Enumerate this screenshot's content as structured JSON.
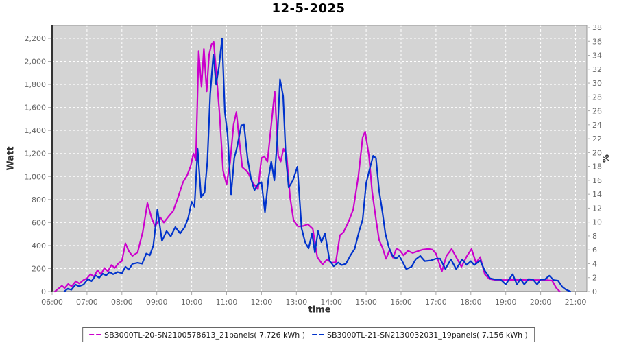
{
  "title": "12-5-2025",
  "axes": {
    "left": {
      "title": "Watt",
      "tick_labels": [
        "0",
        "200",
        "400",
        "600",
        "800",
        "1,000",
        "1,200",
        "1,400",
        "1,600",
        "1,800",
        "2,000",
        "2,200"
      ]
    },
    "right": {
      "title": "%",
      "tick_labels": [
        "0",
        "2",
        "4",
        "6",
        "8",
        "10",
        "12",
        "14",
        "16",
        "18",
        "20",
        "22",
        "24",
        "26",
        "28",
        "30",
        "32",
        "34",
        "36",
        "38"
      ]
    },
    "bottom": {
      "title": "time",
      "tick_labels": [
        "06:00",
        "07:00",
        "08:00",
        "09:00",
        "10:00",
        "11:00",
        "12:00",
        "13:00",
        "14:00",
        "15:00",
        "16:00",
        "17:00",
        "18:00",
        "19:00",
        "20:00",
        "21:00"
      ]
    }
  },
  "colors": {
    "plot_bg": "#d4d4d4",
    "grid": "#ffffff",
    "series1": "#cc00cc",
    "series2": "#0033cc",
    "tick_text": "#666666",
    "axis_line": "#333333",
    "panel_border": "#999999"
  },
  "legend": {
    "items": [
      {
        "label": "SB3000TL-20-SN2100578613_21panels( 7.726 kWh )",
        "color": "#cc00cc"
      },
      {
        "label": "SB3000TL-21-SN2130032031_19panels( 7.156 kWh )",
        "color": "#0033cc"
      }
    ]
  },
  "chart_data": {
    "type": "line",
    "title": "12-5-2025",
    "xlabel": "time",
    "ylabel": "Watt",
    "y2label": "%",
    "x_range_hours": [
      6,
      21.33
    ],
    "ylim": [
      0,
      2313
    ],
    "y2lim": [
      0,
      38.3
    ],
    "x_ticks_hours": [
      6,
      7,
      8,
      9,
      10,
      11,
      12,
      13,
      14,
      15,
      16,
      17,
      18,
      19,
      20,
      21
    ],
    "y_tick_step": 200,
    "y2_tick_step": 2,
    "grid": "on",
    "legend_position": "bottom",
    "series": [
      {
        "name": "SB3000TL-20-SN2100578613_21panels",
        "energy_kwh": 7.726,
        "color": "#cc00cc",
        "points": [
          [
            6.08,
            0
          ],
          [
            6.18,
            25
          ],
          [
            6.28,
            50
          ],
          [
            6.36,
            30
          ],
          [
            6.46,
            65
          ],
          [
            6.56,
            45
          ],
          [
            6.68,
            90
          ],
          [
            6.78,
            70
          ],
          [
            6.9,
            100
          ],
          [
            7.0,
            115
          ],
          [
            7.1,
            150
          ],
          [
            7.2,
            130
          ],
          [
            7.3,
            185
          ],
          [
            7.4,
            150
          ],
          [
            7.5,
            205
          ],
          [
            7.6,
            175
          ],
          [
            7.7,
            230
          ],
          [
            7.8,
            205
          ],
          [
            7.9,
            245
          ],
          [
            8.0,
            265
          ],
          [
            8.1,
            420
          ],
          [
            8.2,
            350
          ],
          [
            8.3,
            310
          ],
          [
            8.45,
            340
          ],
          [
            8.6,
            520
          ],
          [
            8.73,
            770
          ],
          [
            8.85,
            640
          ],
          [
            8.95,
            565
          ],
          [
            9.1,
            645
          ],
          [
            9.2,
            600
          ],
          [
            9.33,
            650
          ],
          [
            9.47,
            700
          ],
          [
            9.6,
            810
          ],
          [
            9.75,
            950
          ],
          [
            9.87,
            1010
          ],
          [
            9.97,
            1090
          ],
          [
            10.05,
            1200
          ],
          [
            10.12,
            1140
          ],
          [
            10.2,
            2090
          ],
          [
            10.28,
            1780
          ],
          [
            10.35,
            2110
          ],
          [
            10.43,
            1740
          ],
          [
            10.5,
            2060
          ],
          [
            10.57,
            2150
          ],
          [
            10.63,
            2170
          ],
          [
            10.72,
            1850
          ],
          [
            10.8,
            1540
          ],
          [
            10.9,
            1050
          ],
          [
            11.0,
            930
          ],
          [
            11.1,
            1120
          ],
          [
            11.2,
            1450
          ],
          [
            11.28,
            1560
          ],
          [
            11.37,
            1300
          ],
          [
            11.45,
            1080
          ],
          [
            11.55,
            1055
          ],
          [
            11.63,
            1025
          ],
          [
            11.75,
            945
          ],
          [
            11.9,
            890
          ],
          [
            12.0,
            1160
          ],
          [
            12.08,
            1175
          ],
          [
            12.17,
            1130
          ],
          [
            12.28,
            1450
          ],
          [
            12.38,
            1740
          ],
          [
            12.48,
            1180
          ],
          [
            12.55,
            1130
          ],
          [
            12.63,
            1240
          ],
          [
            12.72,
            1190
          ],
          [
            12.82,
            820
          ],
          [
            12.92,
            620
          ],
          [
            13.05,
            565
          ],
          [
            13.2,
            570
          ],
          [
            13.33,
            585
          ],
          [
            13.47,
            545
          ],
          [
            13.6,
            300
          ],
          [
            13.75,
            235
          ],
          [
            13.88,
            280
          ],
          [
            14.0,
            250
          ],
          [
            14.13,
            255
          ],
          [
            14.25,
            490
          ],
          [
            14.35,
            515
          ],
          [
            14.5,
            610
          ],
          [
            14.63,
            715
          ],
          [
            14.78,
            1010
          ],
          [
            14.9,
            1340
          ],
          [
            14.97,
            1390
          ],
          [
            15.08,
            1180
          ],
          [
            15.17,
            870
          ],
          [
            15.28,
            630
          ],
          [
            15.37,
            450
          ],
          [
            15.47,
            380
          ],
          [
            15.57,
            285
          ],
          [
            15.67,
            360
          ],
          [
            15.77,
            295
          ],
          [
            15.87,
            375
          ],
          [
            15.97,
            355
          ],
          [
            16.07,
            315
          ],
          [
            16.2,
            355
          ],
          [
            16.33,
            335
          ],
          [
            16.47,
            350
          ],
          [
            16.62,
            365
          ],
          [
            16.78,
            370
          ],
          [
            16.9,
            365
          ],
          [
            17.0,
            330
          ],
          [
            17.17,
            175
          ],
          [
            17.3,
            310
          ],
          [
            17.45,
            370
          ],
          [
            17.58,
            300
          ],
          [
            17.73,
            215
          ],
          [
            17.88,
            305
          ],
          [
            18.02,
            370
          ],
          [
            18.15,
            250
          ],
          [
            18.27,
            300
          ],
          [
            18.4,
            150
          ],
          [
            18.53,
            110
          ],
          [
            18.7,
            100
          ],
          [
            19.0,
            100
          ],
          [
            19.3,
            102
          ],
          [
            19.6,
            100
          ],
          [
            19.9,
            100
          ],
          [
            20.15,
            100
          ],
          [
            20.33,
            95
          ],
          [
            20.45,
            30
          ],
          [
            20.55,
            0
          ]
        ]
      },
      {
        "name": "SB3000TL-21-SN2130032031_19panels",
        "energy_kwh": 7.156,
        "color": "#0033cc",
        "points": [
          [
            6.35,
            0
          ],
          [
            6.45,
            25
          ],
          [
            6.55,
            15
          ],
          [
            6.67,
            60
          ],
          [
            6.77,
            45
          ],
          [
            6.9,
            60
          ],
          [
            7.03,
            110
          ],
          [
            7.13,
            90
          ],
          [
            7.25,
            140
          ],
          [
            7.35,
            120
          ],
          [
            7.45,
            155
          ],
          [
            7.55,
            140
          ],
          [
            7.65,
            170
          ],
          [
            7.75,
            150
          ],
          [
            7.88,
            170
          ],
          [
            8.0,
            158
          ],
          [
            8.1,
            215
          ],
          [
            8.2,
            190
          ],
          [
            8.3,
            240
          ],
          [
            8.45,
            250
          ],
          [
            8.58,
            242
          ],
          [
            8.7,
            330
          ],
          [
            8.8,
            315
          ],
          [
            8.9,
            400
          ],
          [
            9.02,
            715
          ],
          [
            9.15,
            440
          ],
          [
            9.28,
            525
          ],
          [
            9.4,
            480
          ],
          [
            9.53,
            560
          ],
          [
            9.67,
            505
          ],
          [
            9.8,
            560
          ],
          [
            9.9,
            640
          ],
          [
            10.0,
            780
          ],
          [
            10.08,
            735
          ],
          [
            10.17,
            1240
          ],
          [
            10.27,
            820
          ],
          [
            10.37,
            860
          ],
          [
            10.45,
            1130
          ],
          [
            10.53,
            1715
          ],
          [
            10.62,
            2060
          ],
          [
            10.7,
            1800
          ],
          [
            10.78,
            1950
          ],
          [
            10.87,
            2200
          ],
          [
            10.95,
            1560
          ],
          [
            11.03,
            1360
          ],
          [
            11.13,
            845
          ],
          [
            11.22,
            1160
          ],
          [
            11.3,
            1255
          ],
          [
            11.42,
            1445
          ],
          [
            11.5,
            1450
          ],
          [
            11.6,
            1160
          ],
          [
            11.7,
            980
          ],
          [
            11.8,
            880
          ],
          [
            11.9,
            935
          ],
          [
            12.0,
            950
          ],
          [
            12.1,
            690
          ],
          [
            12.2,
            985
          ],
          [
            12.28,
            1130
          ],
          [
            12.37,
            965
          ],
          [
            12.45,
            1310
          ],
          [
            12.53,
            1845
          ],
          [
            12.62,
            1700
          ],
          [
            12.7,
            1160
          ],
          [
            12.78,
            905
          ],
          [
            12.9,
            965
          ],
          [
            13.03,
            1085
          ],
          [
            13.15,
            550
          ],
          [
            13.25,
            430
          ],
          [
            13.35,
            375
          ],
          [
            13.45,
            505
          ],
          [
            13.53,
            340
          ],
          [
            13.62,
            525
          ],
          [
            13.72,
            430
          ],
          [
            13.82,
            505
          ],
          [
            13.95,
            270
          ],
          [
            14.07,
            220
          ],
          [
            14.2,
            252
          ],
          [
            14.3,
            230
          ],
          [
            14.42,
            242
          ],
          [
            14.55,
            315
          ],
          [
            14.67,
            370
          ],
          [
            14.8,
            525
          ],
          [
            14.9,
            625
          ],
          [
            15.0,
            940
          ],
          [
            15.1,
            1065
          ],
          [
            15.2,
            1180
          ],
          [
            15.28,
            1160
          ],
          [
            15.37,
            880
          ],
          [
            15.47,
            685
          ],
          [
            15.55,
            505
          ],
          [
            15.65,
            385
          ],
          [
            15.75,
            315
          ],
          [
            15.85,
            285
          ],
          [
            15.95,
            312
          ],
          [
            16.05,
            255
          ],
          [
            16.15,
            195
          ],
          [
            16.3,
            215
          ],
          [
            16.42,
            280
          ],
          [
            16.55,
            310
          ],
          [
            16.68,
            265
          ],
          [
            16.85,
            270
          ],
          [
            17.0,
            286
          ],
          [
            17.12,
            286
          ],
          [
            17.27,
            196
          ],
          [
            17.43,
            280
          ],
          [
            17.58,
            195
          ],
          [
            17.75,
            280
          ],
          [
            17.88,
            232
          ],
          [
            18.0,
            265
          ],
          [
            18.1,
            230
          ],
          [
            18.27,
            270
          ],
          [
            18.4,
            180
          ],
          [
            18.55,
            115
          ],
          [
            18.7,
            105
          ],
          [
            18.85,
            105
          ],
          [
            19.0,
            62
          ],
          [
            19.1,
            108
          ],
          [
            19.2,
            150
          ],
          [
            19.32,
            62
          ],
          [
            19.42,
            110
          ],
          [
            19.53,
            62
          ],
          [
            19.65,
            108
          ],
          [
            19.78,
            105
          ],
          [
            19.9,
            62
          ],
          [
            20.0,
            105
          ],
          [
            20.12,
            105
          ],
          [
            20.25,
            138
          ],
          [
            20.37,
            100
          ],
          [
            20.5,
            95
          ],
          [
            20.62,
            40
          ],
          [
            20.72,
            18
          ],
          [
            20.85,
            0
          ]
        ]
      }
    ]
  }
}
